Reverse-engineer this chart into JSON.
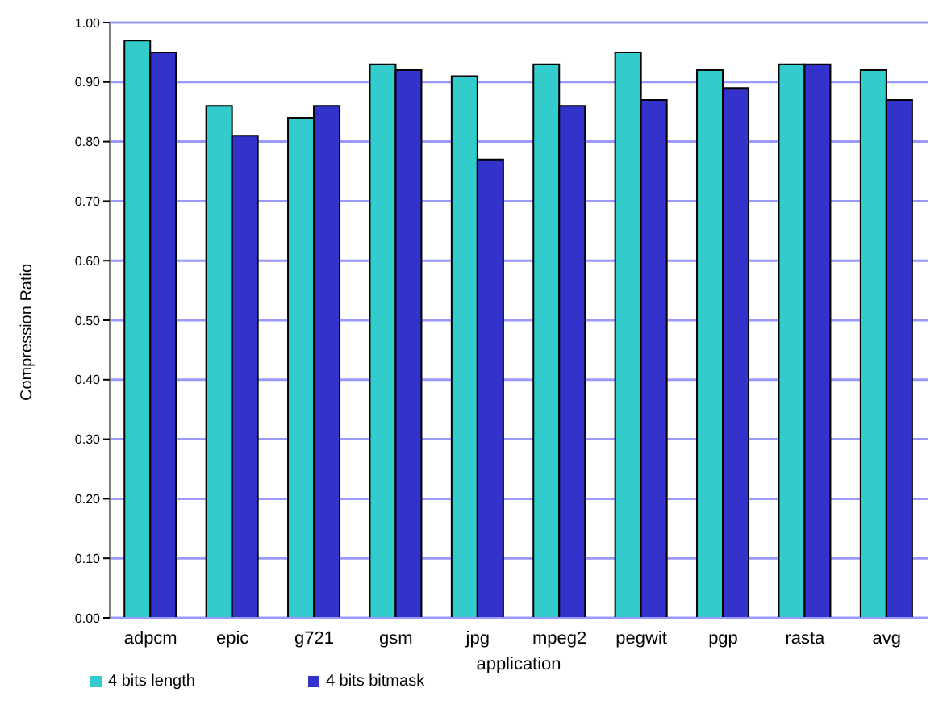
{
  "chart_data": {
    "type": "bar",
    "xlabel": "application",
    "ylabel": "Compression Ratio",
    "categories": [
      "adpcm",
      "epic",
      "g721",
      "gsm",
      "jpg",
      "mpeg2",
      "pegwit",
      "pgp",
      "rasta",
      "avg"
    ],
    "series": [
      {
        "name": "4 bits length",
        "color": "#33cccc",
        "values": [
          0.97,
          0.86,
          0.84,
          0.93,
          0.91,
          0.93,
          0.95,
          0.92,
          0.93,
          0.92
        ]
      },
      {
        "name": "4 bits bitmask",
        "color": "#3333cc",
        "values": [
          0.95,
          0.81,
          0.86,
          0.92,
          0.77,
          0.86,
          0.87,
          0.89,
          0.93,
          0.87
        ]
      }
    ],
    "ylim": [
      0,
      1
    ],
    "yticks": [
      {
        "value": 0,
        "label": "0.00"
      },
      {
        "value": 0.1,
        "label": "0.10"
      },
      {
        "value": 0.2,
        "label": "0.20"
      },
      {
        "value": 0.3,
        "label": "0.30"
      },
      {
        "value": 0.4,
        "label": "0.40"
      },
      {
        "value": 0.5,
        "label": "0.50"
      },
      {
        "value": 0.6,
        "label": "0.60"
      },
      {
        "value": 0.7,
        "label": "0.70"
      },
      {
        "value": 0.8,
        "label": "0.80"
      },
      {
        "value": 0.9,
        "label": "0.90"
      },
      {
        "value": 1,
        "label": "1.00"
      }
    ],
    "grid": "y",
    "legend": "bottom left"
  }
}
